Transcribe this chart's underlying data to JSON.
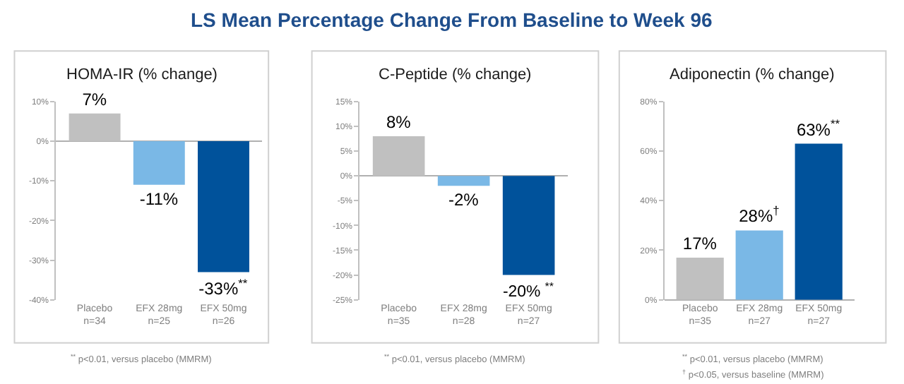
{
  "chart_data": [
    {
      "type": "bar",
      "title": "LS Mean Percentage Change From Baseline to Week 96",
      "subtitle": "HOMA-IR (% change)",
      "categories": [
        "Placebo\nn=34",
        "EFX 28mg\nn=25",
        "EFX 50mg\nn=26"
      ],
      "values": [
        7,
        -11,
        -33
      ],
      "colors": [
        "#c0c0c0",
        "#7ab8e6",
        "#00529b"
      ],
      "value_labels": [
        "7%",
        "-11%",
        "-33%$^{**}$"
      ],
      "ylim": [
        -40,
        10
      ],
      "yticks": [
        {
          "value": -40,
          "label": "-40%"
        },
        {
          "value": -30,
          "label": "-30%"
        },
        {
          "value": -20,
          "label": "-20%"
        },
        {
          "value": -10,
          "label": "-10%"
        },
        {
          "value": 0,
          "label": "0%"
        },
        {
          "value": 10,
          "label": "10%"
        }
      ],
      "annotations": [
        "$^{**}$ p<0.01, versus placebo (MMRM)"
      ]
    },
    {
      "type": "bar",
      "subtitle": "C-Peptide (% change)",
      "categories": [
        "Placebo\nn=35",
        "EFX 28mg\nn=28",
        "EFX 50mg\nn=27"
      ],
      "values": [
        8,
        -2,
        -20
      ],
      "colors": [
        "#c0c0c0",
        "#7ab8e6",
        "#00529b"
      ],
      "value_labels": [
        "8%",
        "-2%",
        "-20% $^{**}$"
      ],
      "ylim": [
        -25,
        15
      ],
      "yticks": [
        {
          "value": -25,
          "label": "-25%"
        },
        {
          "value": -20,
          "label": "-20%"
        },
        {
          "value": -15,
          "label": "-15%"
        },
        {
          "value": -10,
          "label": "-10%"
        },
        {
          "value": -5,
          "label": "-5%"
        },
        {
          "value": 0,
          "label": "0%"
        },
        {
          "value": 5,
          "label": "5%"
        },
        {
          "value": 10,
          "label": "10%"
        },
        {
          "value": 15,
          "label": "15%"
        }
      ],
      "annotations": [
        "$^{**}$ p<0.01, versus placebo (MMRM)"
      ]
    },
    {
      "type": "bar",
      "subtitle": "Adiponectin (% change)",
      "categories": [
        "Placebo\nn=35",
        "EFX 28mg\nn=27",
        "EFX 50mg\nn=27"
      ],
      "values": [
        17,
        28,
        63
      ],
      "colors": [
        "#c0c0c0",
        "#7ab8e6",
        "#00529b"
      ],
      "value_labels": [
        "17%",
        "28%$^{†}$",
        "63%$^{**}$"
      ],
      "ylim": [
        0,
        80
      ],
      "yticks": [
        {
          "value": 0,
          "label": "0%"
        },
        {
          "value": 20,
          "label": "20%"
        },
        {
          "value": 40,
          "label": "40%"
        },
        {
          "value": 60,
          "label": "60%"
        },
        {
          "value": 80,
          "label": "80%"
        }
      ],
      "annotations": [
        "$^{**}$ p<0.01, versus placebo (MMRM)",
        "$^{†}$ p<0.05, versus baseline (MMRM)"
      ]
    }
  ]
}
